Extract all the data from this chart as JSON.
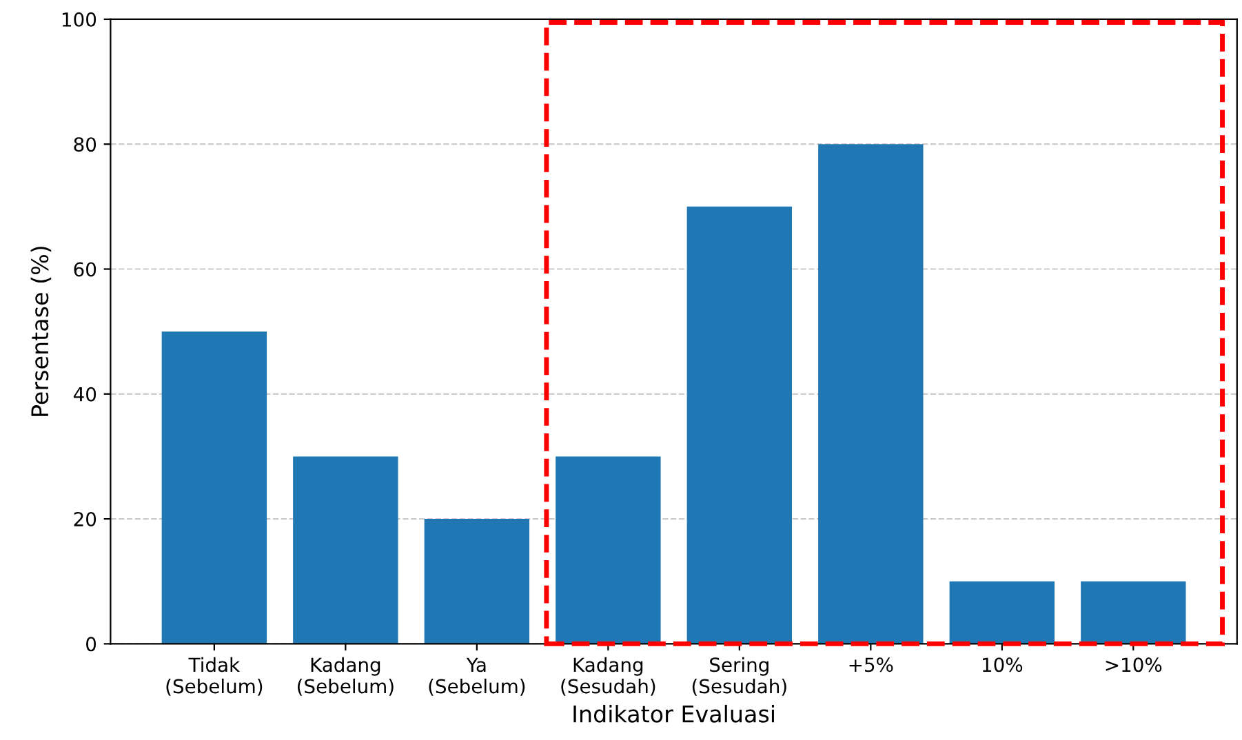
{
  "chart_data": {
    "type": "bar",
    "xlabel": "Indikator Evaluasi",
    "ylabel": "Persentase (%)",
    "categories": [
      "Tidak\n(Sebelum)",
      "Kadang\n(Sebelum)",
      "Ya\n(Sebelum)",
      "Kadang\n(Sesudah)",
      "Sering\n(Sesudah)",
      "+5%",
      "10%",
      ">10%"
    ],
    "series": [
      {
        "color": "#1f77b4",
        "values": [
          50,
          30,
          20,
          30,
          70,
          80,
          10,
          10
        ]
      }
    ],
    "ylim": [
      0,
      100
    ],
    "yticks": [
      0,
      20,
      40,
      60,
      80,
      100
    ],
    "grid": "y"
  }
}
